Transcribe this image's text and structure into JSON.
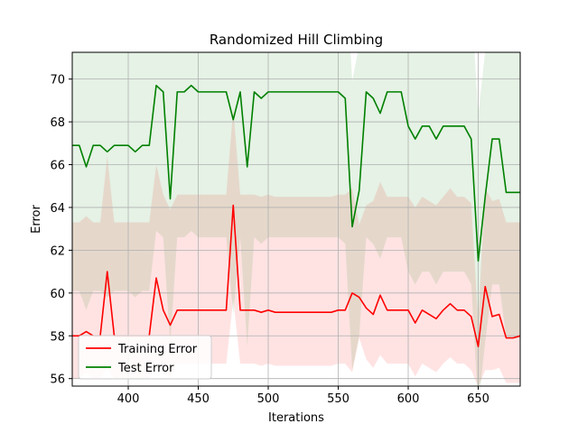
{
  "chart_data": {
    "type": "line",
    "title": "Randomized Hill Climbing",
    "xlabel": "Iterations",
    "ylabel": "Error",
    "xlim": [
      360,
      680
    ],
    "ylim": [
      55.65,
      71.25
    ],
    "grid": true,
    "legend_position": "lower-left",
    "x_ticks": [
      400,
      450,
      500,
      550,
      600,
      650
    ],
    "y_ticks": [
      56,
      58,
      60,
      62,
      64,
      66,
      68,
      70
    ],
    "x": [
      360,
      365,
      370,
      375,
      380,
      385,
      390,
      395,
      400,
      405,
      410,
      415,
      420,
      425,
      430,
      435,
      440,
      445,
      450,
      455,
      460,
      465,
      470,
      475,
      480,
      485,
      490,
      495,
      500,
      505,
      510,
      515,
      520,
      525,
      530,
      535,
      540,
      545,
      550,
      555,
      560,
      565,
      570,
      575,
      580,
      585,
      590,
      595,
      600,
      605,
      610,
      615,
      620,
      625,
      630,
      635,
      640,
      645,
      650,
      655,
      660,
      665,
      670,
      675,
      680
    ],
    "series": [
      {
        "name": "Training Error",
        "color": "#ff0000",
        "band_color": "#ff0000",
        "values": [
          58.0,
          58.0,
          58.2,
          58.0,
          58.0,
          61.0,
          58.0,
          58.0,
          58.0,
          58.0,
          58.0,
          58.0,
          60.7,
          59.2,
          58.5,
          59.2,
          59.2,
          59.2,
          59.2,
          59.2,
          59.2,
          59.2,
          59.2,
          64.1,
          59.2,
          59.2,
          59.2,
          59.1,
          59.2,
          59.1,
          59.1,
          59.1,
          59.1,
          59.1,
          59.1,
          59.1,
          59.1,
          59.1,
          59.2,
          59.2,
          60.0,
          59.8,
          59.3,
          59.0,
          59.9,
          59.2,
          59.2,
          59.2,
          59.2,
          58.6,
          59.2,
          59.0,
          58.8,
          59.2,
          59.5,
          59.2,
          59.2,
          58.9,
          57.5,
          60.3,
          58.9,
          59.0,
          57.9,
          57.9,
          58.0
        ],
        "lower": [
          56.0,
          56.0,
          56.3,
          56.0,
          56.0,
          56.5,
          56.0,
          56.0,
          56.0,
          56.0,
          56.0,
          56.0,
          56.9,
          56.6,
          56.0,
          56.7,
          56.7,
          56.7,
          56.7,
          56.7,
          56.7,
          56.7,
          56.7,
          59.7,
          56.7,
          56.7,
          56.7,
          56.6,
          56.7,
          56.6,
          56.6,
          56.6,
          56.6,
          56.6,
          56.6,
          56.6,
          56.6,
          56.6,
          56.7,
          56.7,
          56.3,
          57.9,
          56.9,
          56.5,
          57.1,
          56.7,
          56.7,
          56.7,
          56.7,
          56.1,
          56.7,
          56.5,
          56.3,
          56.7,
          57.0,
          56.7,
          56.7,
          56.4,
          55.6,
          56.4,
          56.4,
          56.5,
          55.8,
          55.8,
          55.8
        ],
        "upper": [
          63.3,
          63.3,
          63.6,
          63.3,
          63.3,
          66.4,
          63.3,
          63.3,
          63.3,
          63.3,
          63.3,
          63.3,
          66.0,
          64.6,
          63.9,
          64.6,
          64.6,
          64.6,
          64.6,
          64.6,
          64.6,
          64.6,
          64.6,
          68.6,
          64.6,
          64.6,
          64.6,
          64.5,
          64.6,
          64.5,
          64.5,
          64.5,
          64.5,
          64.5,
          64.5,
          64.5,
          64.5,
          64.5,
          64.6,
          64.6,
          64.9,
          63.2,
          64.1,
          64.3,
          65.2,
          64.5,
          64.5,
          64.5,
          64.5,
          64.0,
          64.5,
          64.3,
          64.1,
          64.5,
          64.9,
          64.5,
          64.5,
          64.2,
          58.7,
          64.9,
          64.3,
          64.4,
          63.3,
          63.3,
          63.3
        ]
      },
      {
        "name": "Test Error",
        "color": "#008000",
        "band_color": "#008000",
        "values": [
          66.9,
          66.9,
          65.9,
          66.9,
          66.9,
          66.6,
          66.9,
          66.9,
          66.9,
          66.6,
          66.9,
          66.9,
          69.7,
          69.4,
          64.4,
          69.4,
          69.4,
          69.7,
          69.4,
          69.4,
          69.4,
          69.4,
          69.4,
          68.1,
          69.4,
          65.9,
          69.4,
          69.1,
          69.4,
          69.4,
          69.4,
          69.4,
          69.4,
          69.4,
          69.4,
          69.4,
          69.4,
          69.4,
          69.4,
          69.1,
          63.1,
          64.8,
          69.4,
          69.1,
          68.4,
          69.4,
          69.4,
          69.4,
          67.8,
          67.2,
          67.8,
          67.8,
          67.2,
          67.8,
          67.8,
          67.8,
          67.8,
          67.2,
          61.5,
          64.5,
          67.2,
          67.2,
          64.7,
          64.7,
          64.7
        ],
        "lower": [
          60.1,
          60.1,
          59.2,
          60.1,
          60.1,
          59.8,
          60.1,
          60.1,
          60.1,
          59.8,
          60.1,
          60.1,
          62.9,
          62.6,
          57.6,
          62.6,
          62.6,
          62.9,
          62.6,
          62.6,
          62.6,
          62.6,
          62.6,
          59.0,
          62.6,
          57.5,
          62.6,
          62.3,
          62.6,
          62.6,
          62.6,
          62.6,
          62.6,
          62.6,
          62.6,
          62.6,
          62.6,
          62.6,
          62.6,
          62.3,
          56.4,
          58.0,
          62.6,
          62.3,
          61.6,
          62.6,
          62.6,
          62.6,
          61.0,
          60.4,
          61.0,
          61.0,
          60.4,
          61.0,
          61.0,
          61.0,
          61.0,
          60.4,
          54.7,
          57.7,
          60.4,
          60.4,
          57.9,
          57.9,
          57.9
        ],
        "upper": [
          73.7,
          73.7,
          72.7,
          73.7,
          73.7,
          73.4,
          73.7,
          73.7,
          73.7,
          73.4,
          73.7,
          73.7,
          76.5,
          76.2,
          71.2,
          76.2,
          76.2,
          76.5,
          76.2,
          76.2,
          76.2,
          76.2,
          76.2,
          74.9,
          76.2,
          72.7,
          76.2,
          75.9,
          76.2,
          76.2,
          76.2,
          76.2,
          76.2,
          76.2,
          76.2,
          76.2,
          76.2,
          76.2,
          76.2,
          75.9,
          69.9,
          71.6,
          76.2,
          75.9,
          75.2,
          76.2,
          76.2,
          76.2,
          74.6,
          74.0,
          74.6,
          74.6,
          74.0,
          74.6,
          74.6,
          74.6,
          74.6,
          74.0,
          68.3,
          71.3,
          74.0,
          74.0,
          71.5,
          71.5,
          71.5
        ]
      }
    ]
  }
}
